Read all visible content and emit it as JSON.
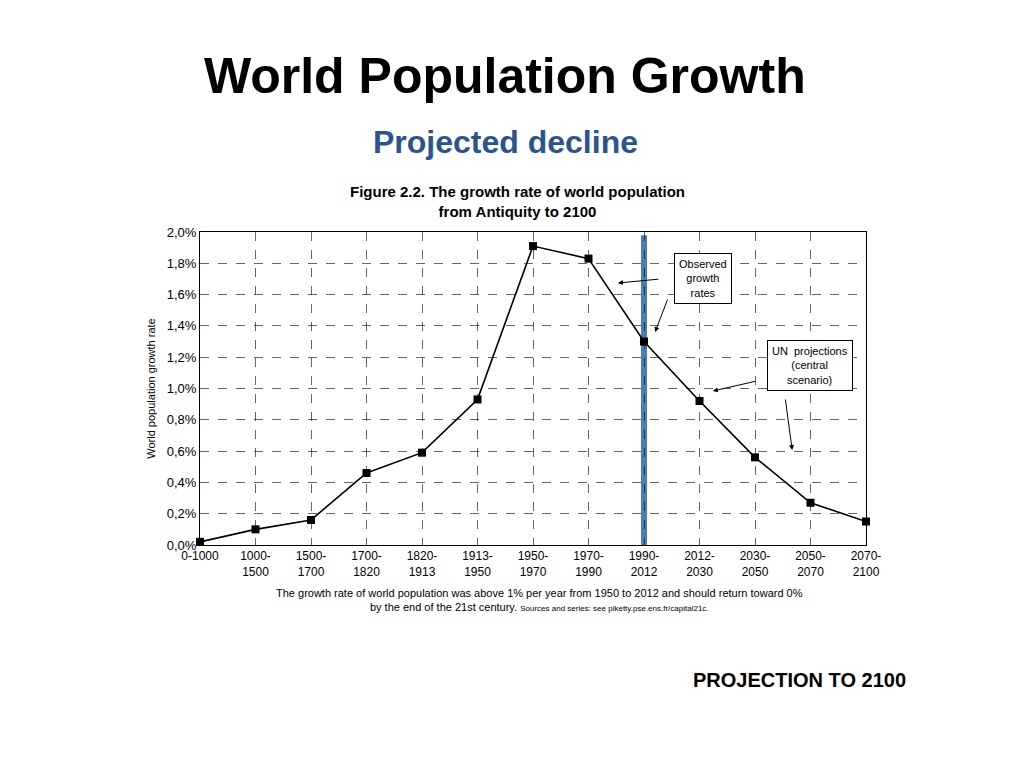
{
  "chart_data": {
    "type": "line",
    "title": "World Population Growth",
    "subtitle": "Projected decline",
    "figure_title": [
      "Figure 2.2. The growth rate of world population",
      "from Antiquity to 2100"
    ],
    "y_label": "World population growth rate",
    "caption": [
      "The growth rate of world population was above 1% per year from 1950 to 2012 and should return toward 0%",
      "by the end of the 21st century."
    ],
    "source": "Sources and series: see piketty.pse.ens.fr/capital21c.",
    "footer": "PROJECTION TO 2100",
    "annotations": [
      "Observed\ngrowth\nrates",
      "UN  projections\n(central\nscenario)"
    ],
    "categories": [
      "0-1000",
      "1000-\n1500",
      "1500-\n1700",
      "1700-\n1820",
      "1820-\n1913",
      "1913-\n1950",
      "1950-\n1970",
      "1970-\n1990",
      "1990-\n2012",
      "2012-\n2030",
      "2030-\n2050",
      "2050-\n2070",
      "2070-\n2100"
    ],
    "values": [
      0.02,
      0.1,
      0.16,
      0.46,
      0.59,
      0.93,
      1.91,
      1.83,
      1.3,
      0.92,
      0.56,
      0.27,
      0.15
    ],
    "color": "#000000",
    "marker": "square",
    "line_style": "solid",
    "grid": true,
    "ylim": [
      0,
      2.0
    ],
    "yticks": [
      {
        "value": 0,
        "label": "0,0%"
      },
      {
        "value": 0.2,
        "label": "0,2%"
      },
      {
        "value": 0.4,
        "label": "0,4%"
      },
      {
        "value": 0.6,
        "label": "0,6%"
      },
      {
        "value": 0.8,
        "label": "0,8%"
      },
      {
        "value": 1.0,
        "label": "1,0%"
      },
      {
        "value": 1.2,
        "label": "1,2%"
      },
      {
        "value": 1.4,
        "label": "1,4%"
      },
      {
        "value": 1.6,
        "label": "1,6%"
      },
      {
        "value": 1.8,
        "label": "1,8%"
      },
      {
        "value": 2.0,
        "label": "2,0%"
      }
    ]
  }
}
